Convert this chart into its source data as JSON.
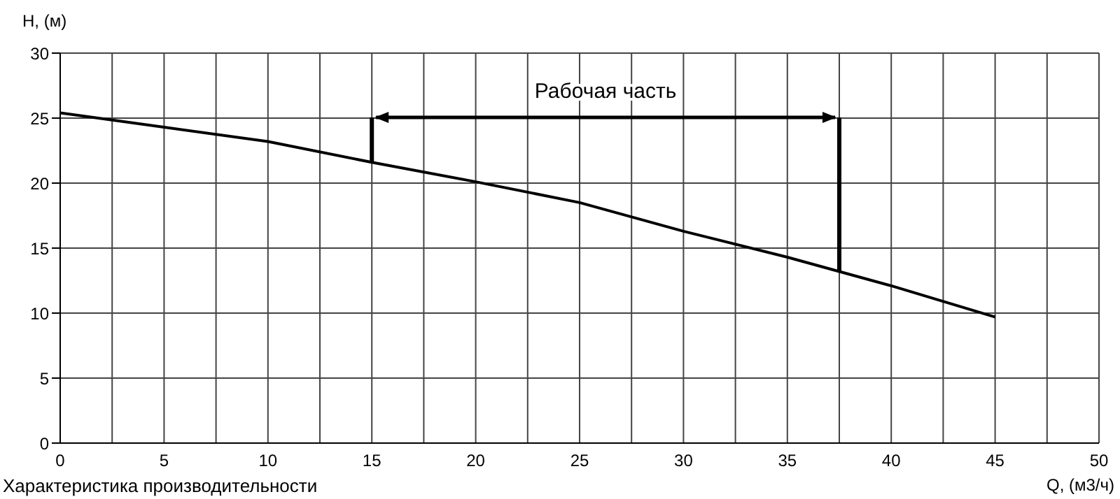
{
  "chart_data": {
    "type": "line",
    "xlabel": "Q, (м3/ч)",
    "ylabel": "H, (м)",
    "x": [
      0,
      5,
      10,
      15,
      20,
      25,
      30,
      35,
      37.5,
      40,
      45
    ],
    "series": [
      {
        "color": "#000000",
        "values": [
          25.4,
          24.3,
          23.2,
          21.6,
          20.1,
          18.5,
          16.3,
          14.3,
          13.2,
          12.1,
          9.7
        ]
      }
    ],
    "xlim": [
      0,
      50
    ],
    "xticks": [
      0,
      {
        "value": 2.5,
        "label": null
      },
      5,
      {
        "value": 7.5,
        "label": null
      },
      10,
      {
        "value": 12.5,
        "label": null
      },
      15,
      {
        "value": 17.5,
        "label": null
      },
      20,
      {
        "value": 22.5,
        "label": null
      },
      25,
      {
        "value": 27.5,
        "label": null
      },
      30,
      {
        "value": 32.5,
        "label": null
      },
      35,
      {
        "value": 37.5,
        "label": null
      },
      40,
      {
        "value": 42.5,
        "label": null
      },
      45,
      {
        "value": 47.5,
        "label": null
      },
      50
    ],
    "ylim": [
      0,
      30
    ],
    "yticks": [
      0,
      5,
      10,
      15,
      20,
      25,
      30
    ],
    "grid": true,
    "marker": "none",
    "line_style": "solid",
    "ref_lines": [
      {
        "axis": "x",
        "value": 15,
        "color": "#000000"
      },
      {
        "axis": "x",
        "value": 37.5,
        "color": "#000000"
      }
    ],
    "annotations": [
      "Рабочая часть",
      "Характеристика производительности"
    ]
  }
}
